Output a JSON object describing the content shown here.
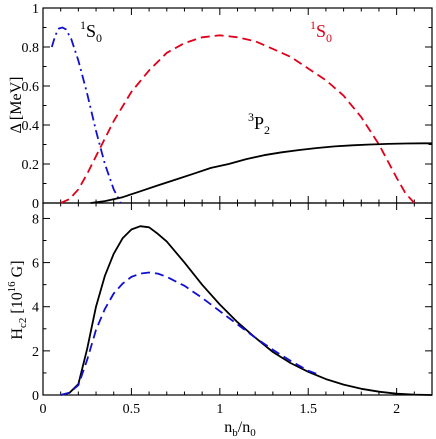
{
  "colors": {
    "black": "#000000",
    "red": "#e0001a",
    "blue": "#1010d0"
  },
  "chart_data": [
    {
      "type": "line",
      "panel": "top",
      "ylabel": "Δ [MeV]",
      "xlim": [
        0,
        2.2
      ],
      "ylim": [
        0,
        1
      ],
      "xticks": [
        0,
        0.5,
        1,
        1.5,
        2
      ],
      "yticks": [
        0,
        0.2,
        0.4,
        0.6,
        0.8,
        1
      ],
      "ytick_labels": [
        "0",
        "0.2",
        "0.4",
        "0.6",
        "0.8",
        "1"
      ],
      "series": [
        {
          "key": "nS0",
          "color": "#1010d0",
          "dash": "dashdot",
          "x": [
            0.05,
            0.07,
            0.09,
            0.11,
            0.13,
            0.16,
            0.2,
            0.25,
            0.3,
            0.35,
            0.4,
            0.44
          ],
          "y": [
            0.8,
            0.86,
            0.895,
            0.9,
            0.89,
            0.84,
            0.73,
            0.56,
            0.37,
            0.2,
            0.07,
            0.0
          ]
        },
        {
          "key": "pS0",
          "color": "#e0001a",
          "dash": "dash",
          "x": [
            0.1,
            0.15,
            0.2,
            0.25,
            0.3,
            0.4,
            0.5,
            0.6,
            0.7,
            0.8,
            0.9,
            1.0,
            1.1,
            1.2,
            1.3,
            1.4,
            1.5,
            1.6,
            1.7,
            1.8,
            1.9,
            2.0,
            2.05,
            2.1
          ],
          "y": [
            0.0,
            0.02,
            0.07,
            0.15,
            0.24,
            0.42,
            0.57,
            0.68,
            0.77,
            0.82,
            0.85,
            0.86,
            0.85,
            0.83,
            0.79,
            0.75,
            0.69,
            0.63,
            0.55,
            0.44,
            0.3,
            0.13,
            0.05,
            0.0
          ]
        },
        {
          "key": "nP2",
          "color": "#000000",
          "dash": "solid",
          "x": [
            0.27,
            0.35,
            0.45,
            0.55,
            0.65,
            0.75,
            0.85,
            0.95,
            1.05,
            1.15,
            1.25,
            1.35,
            1.45,
            1.55,
            1.65,
            1.75,
            1.85,
            1.95,
            2.05,
            2.15,
            2.2
          ],
          "y": [
            0.0,
            0.01,
            0.03,
            0.06,
            0.09,
            0.12,
            0.15,
            0.18,
            0.2,
            0.225,
            0.245,
            0.26,
            0.272,
            0.282,
            0.29,
            0.296,
            0.3,
            0.303,
            0.305,
            0.306,
            0.306
          ]
        }
      ],
      "annotations": {
        "nS0": {
          "base": "1",
          "sub": "S",
          "tail": "0"
        },
        "pS0": {
          "base": "1",
          "sub": "S",
          "tail": "0"
        },
        "nP2": {
          "base": "3",
          "sub": "P",
          "tail": "2"
        }
      }
    },
    {
      "type": "line",
      "panel": "bottom",
      "xlabel_main": "n",
      "xlabel_sub1": "b",
      "xlabel_mid": "/n",
      "xlabel_sub2": "0",
      "ylabel_main": "H",
      "ylabel_sub": "c2",
      "ylabel_rest": " [10",
      "ylabel_sup": "16",
      "ylabel_end": " G]",
      "xlim": [
        0,
        2.2
      ],
      "ylim": [
        0,
        8.7
      ],
      "xticks": [
        0,
        0.5,
        1,
        1.5,
        2
      ],
      "xtick_labels": [
        "0",
        "0.5",
        "1",
        "1.5",
        "2"
      ],
      "yticks": [
        0,
        2,
        4,
        6,
        8
      ],
      "ytick_labels": [
        "0",
        "2",
        "4",
        "6",
        "8"
      ],
      "series": [
        {
          "key": "black",
          "color": "#000000",
          "dash": "solid",
          "x": [
            0.1,
            0.15,
            0.2,
            0.25,
            0.3,
            0.35,
            0.4,
            0.45,
            0.5,
            0.55,
            0.6,
            0.65,
            0.7,
            0.8,
            0.9,
            1.0,
            1.1,
            1.2,
            1.3,
            1.4,
            1.5,
            1.6,
            1.7,
            1.8,
            1.9,
            2.0,
            2.1,
            2.2
          ],
          "y": [
            0.0,
            0.1,
            0.5,
            2.1,
            4.0,
            5.4,
            6.4,
            7.1,
            7.5,
            7.65,
            7.6,
            7.3,
            6.95,
            6.0,
            5.0,
            4.1,
            3.3,
            2.6,
            1.95,
            1.45,
            1.05,
            0.72,
            0.47,
            0.28,
            0.15,
            0.06,
            0.02,
            0.0
          ]
        },
        {
          "key": "blue",
          "color": "#1010d0",
          "dash": "dash",
          "x": [
            0.1,
            0.15,
            0.2,
            0.25,
            0.3,
            0.35,
            0.4,
            0.45,
            0.5,
            0.55,
            0.6,
            0.65,
            0.7,
            0.8,
            0.9,
            1.0,
            1.1,
            1.2,
            1.3,
            1.4,
            1.5,
            1.55
          ],
          "y": [
            0.0,
            0.1,
            0.45,
            1.6,
            2.95,
            3.9,
            4.6,
            5.05,
            5.35,
            5.5,
            5.55,
            5.5,
            5.35,
            4.95,
            4.4,
            3.8,
            3.2,
            2.6,
            2.05,
            1.55,
            1.1,
            0.95
          ]
        }
      ]
    }
  ]
}
